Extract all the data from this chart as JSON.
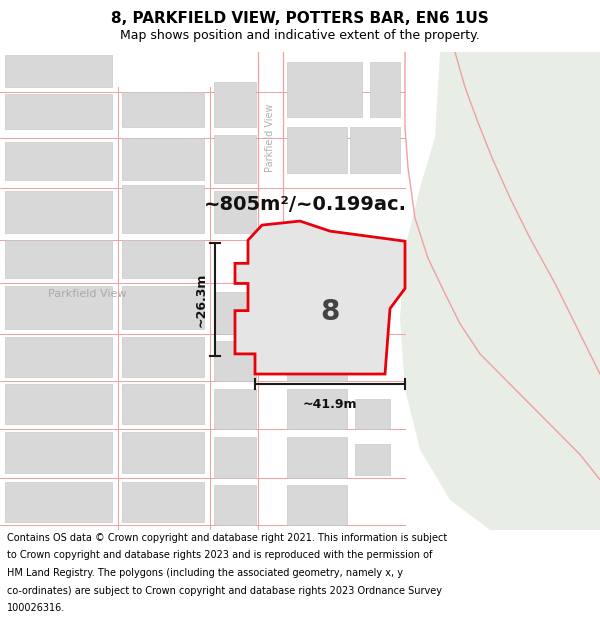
{
  "title_line1": "8, PARKFIELD VIEW, POTTERS BAR, EN6 1US",
  "title_line2": "Map shows position and indicative extent of the property.",
  "area_label": "~805m²/~0.199ac.",
  "width_label": "~41.9m",
  "height_label": "~26.3m",
  "number_label": "8",
  "street_label": "Parkfield View",
  "road_label": "Parkfield View",
  "footer_lines": [
    "Contains OS data © Crown copyright and database right 2021. This information is subject",
    "to Crown copyright and database rights 2023 and is reproduced with the permission of",
    "HM Land Registry. The polygons (including the associated geometry, namely x, y",
    "co-ordinates) are subject to Crown copyright and database rights 2023 Ordnance Survey",
    "100026316."
  ],
  "map_bg": "#f7f7f7",
  "green_bg": "#e8ede5",
  "plot_fill": "#e5e5e5",
  "plot_border": "#e8000a",
  "building_fill": "#d8d8d8",
  "road_line": "#f0a0a0",
  "dim_line": "#1a1a1a",
  "title_bg": "#ffffff",
  "footer_bg": "#ffffff",
  "road_fill": "#f9f9f9",
  "title_fontsize": 11,
  "subtitle_fontsize": 9,
  "footer_fontsize": 7.0,
  "area_fontsize": 14,
  "number_fontsize": 20,
  "dim_fontsize": 9,
  "street_fontsize": 8
}
